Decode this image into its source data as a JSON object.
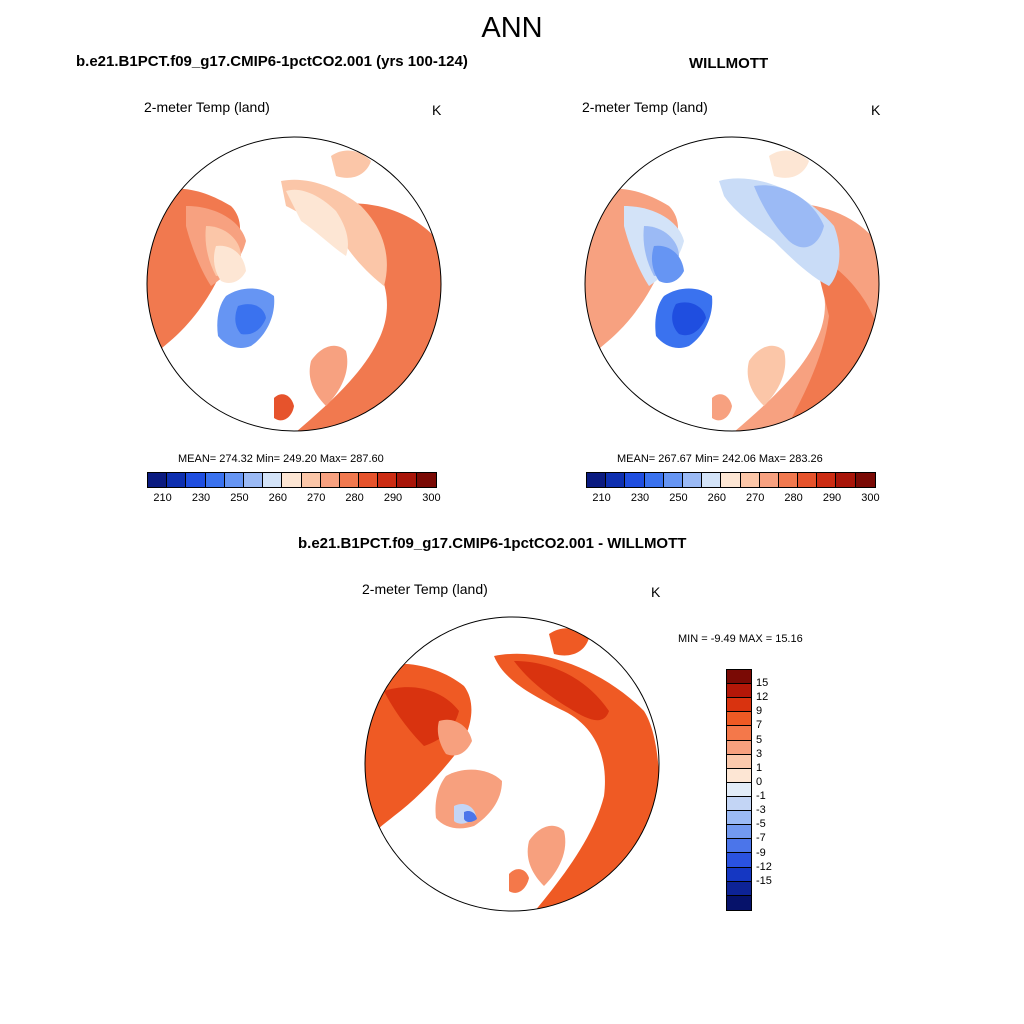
{
  "header": {
    "season": "ANN"
  },
  "panels": [
    {
      "title": "b.e21.B1PCT.f09_g17.CMIP6-1pctCO2.001 (yrs 100-124)",
      "variable": "2-meter Temp (land)",
      "units": "K",
      "stats": "MEAN= 274.32  Min= 249.20  Max= 287.60"
    },
    {
      "title": "WILLMOTT",
      "variable": "2-meter Temp (land)",
      "units": "K",
      "stats": "MEAN= 267.67  Min= 242.06  Max= 283.26"
    },
    {
      "title": "b.e21.B1PCT.f09_g17.CMIP6-1pctCO2.001 - WILLMOTT",
      "variable": "2-meter Temp (land)",
      "units": "K",
      "stats": "MIN =  -9.49 MAX =  15.16"
    }
  ],
  "colorbar_abs": {
    "colors": [
      "#0a1a80",
      "#0d2fb0",
      "#1f4ee0",
      "#3a72ef",
      "#6695f3",
      "#9bbaf5",
      "#d3e3f8",
      "#fde6d4",
      "#fbc6a8",
      "#f7a180",
      "#f1794f",
      "#e6532c",
      "#cc2c13",
      "#a81509",
      "#7a0a05"
    ],
    "ticks": [
      "210",
      "230",
      "250",
      "260",
      "270",
      "280",
      "290",
      "300"
    ]
  },
  "colorbar_diff": {
    "colors": [
      "#7a0a05",
      "#b31708",
      "#d9330f",
      "#ef5a24",
      "#f4784a",
      "#f7a07e",
      "#fbc9ac",
      "#fde6d4",
      "#e2ecf8",
      "#c3d5f5",
      "#9bbaf5",
      "#7299f0",
      "#4b75ea",
      "#2a52e0",
      "#1537c2",
      "#0d2396",
      "#06126a"
    ],
    "ticks": [
      "15",
      "12",
      "9",
      "7",
      "5",
      "3",
      "1",
      "0",
      "-1",
      "-3",
      "-5",
      "-7",
      "-9",
      "-12",
      "-15"
    ]
  }
}
